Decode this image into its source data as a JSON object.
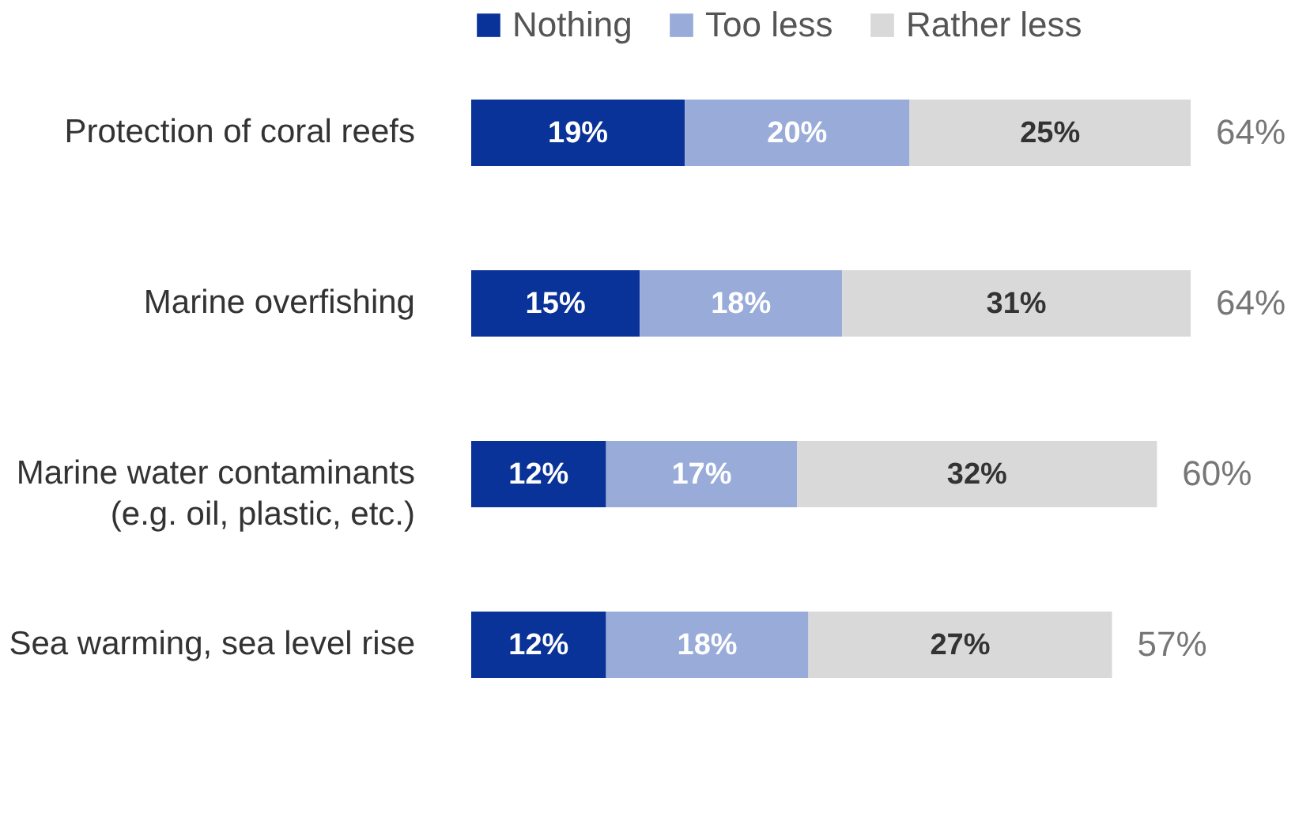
{
  "chart_data": {
    "type": "bar",
    "orientation": "horizontal",
    "stacked": true,
    "legend": "top",
    "categories": [
      "Protection of coral reefs",
      "Marine overfishing",
      "Marine water contaminants\n(e.g. oil, plastic, etc.)",
      "Sea warming, sea level rise"
    ],
    "series": [
      {
        "name": "Nothing",
        "color": "#0a3399",
        "values": [
          19,
          15,
          12,
          12
        ],
        "value_labels": [
          "19%",
          "15%",
          "12%",
          "12%"
        ]
      },
      {
        "name": "Too less",
        "color": "#99acd9",
        "values": [
          20,
          18,
          17,
          18
        ],
        "value_labels": [
          "20%",
          "18%",
          "17%",
          "18%"
        ]
      },
      {
        "name": "Rather less",
        "color": "#d9d9d9",
        "values": [
          25,
          31,
          32,
          27
        ],
        "value_labels": [
          "25%",
          "31%",
          "32%",
          "27%"
        ]
      }
    ],
    "totals": [
      "64%",
      "64%",
      "60%",
      "57%"
    ]
  }
}
